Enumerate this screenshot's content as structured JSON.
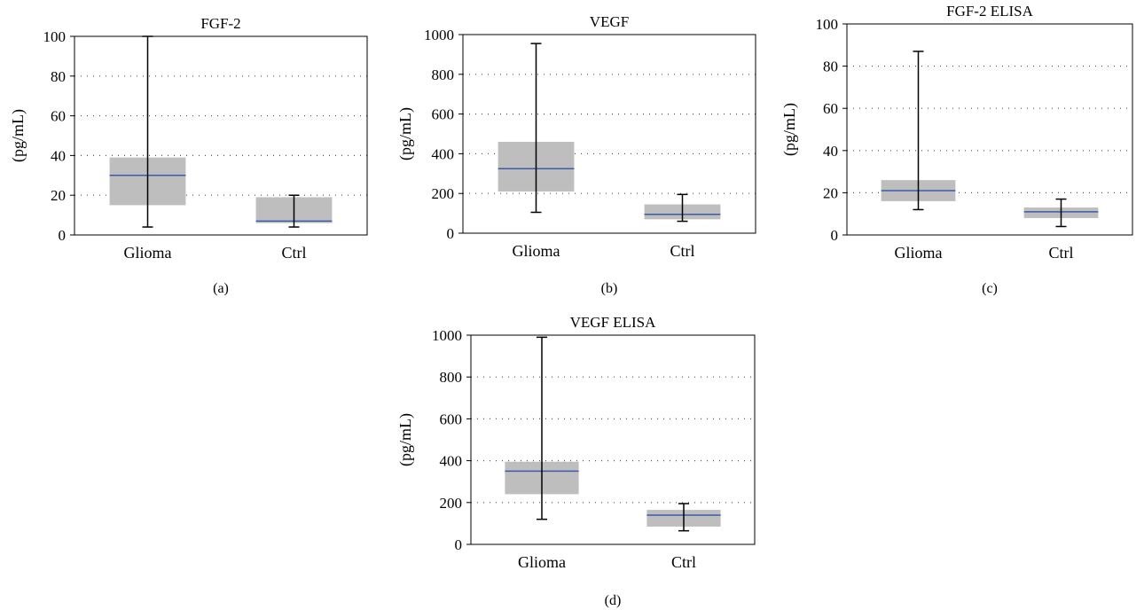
{
  "chart_data": [
    {
      "type": "box",
      "panel_label": "(a)",
      "title": "FGF-2",
      "ylabel": "(pg/mL)",
      "ylim": [
        0,
        100
      ],
      "yticks": [
        0,
        20,
        40,
        60,
        80,
        100
      ],
      "grid": "horizontal dotted",
      "categories": [
        "Glioma",
        "Ctrl"
      ],
      "boxes": [
        {
          "category": "Glioma",
          "min": 4,
          "q1": 15,
          "median": 30,
          "q3": 39,
          "max": 100
        },
        {
          "category": "Ctrl",
          "min": 4,
          "q1": 6,
          "median": 7,
          "q3": 19,
          "max": 20
        }
      ]
    },
    {
      "type": "box",
      "panel_label": "(b)",
      "title": "VEGF",
      "ylabel": "(pg/mL)",
      "ylim": [
        0,
        1000
      ],
      "yticks": [
        0,
        200,
        400,
        600,
        800,
        1000
      ],
      "grid": "horizontal dotted",
      "categories": [
        "Glioma",
        "Ctrl"
      ],
      "boxes": [
        {
          "category": "Glioma",
          "min": 105,
          "q1": 210,
          "median": 325,
          "q3": 460,
          "max": 955
        },
        {
          "category": "Ctrl",
          "min": 60,
          "q1": 70,
          "median": 95,
          "q3": 145,
          "max": 195
        }
      ]
    },
    {
      "type": "box",
      "panel_label": "(c)",
      "title": "FGF-2 ELISA",
      "ylabel": "(pg/mL)",
      "ylim": [
        0,
        100
      ],
      "yticks": [
        0,
        20,
        40,
        60,
        80,
        100
      ],
      "grid": "horizontal dotted",
      "categories": [
        "Glioma",
        "Ctrl"
      ],
      "boxes": [
        {
          "category": "Glioma",
          "min": 12,
          "q1": 16,
          "median": 21,
          "q3": 26,
          "max": 87
        },
        {
          "category": "Ctrl",
          "min": 4,
          "q1": 8,
          "median": 11,
          "q3": 13,
          "max": 17
        }
      ]
    },
    {
      "type": "box",
      "panel_label": "(d)",
      "title": "VEGF ELISA",
      "ylabel": "(pg/mL)",
      "ylim": [
        0,
        1000
      ],
      "yticks": [
        0,
        200,
        400,
        600,
        800,
        1000
      ],
      "grid": "horizontal dotted",
      "categories": [
        "Glioma",
        "Ctrl"
      ],
      "boxes": [
        {
          "category": "Glioma",
          "min": 120,
          "q1": 240,
          "median": 350,
          "q3": 395,
          "max": 990
        },
        {
          "category": "Ctrl",
          "min": 65,
          "q1": 85,
          "median": 140,
          "q3": 165,
          "max": 195
        }
      ]
    }
  ]
}
